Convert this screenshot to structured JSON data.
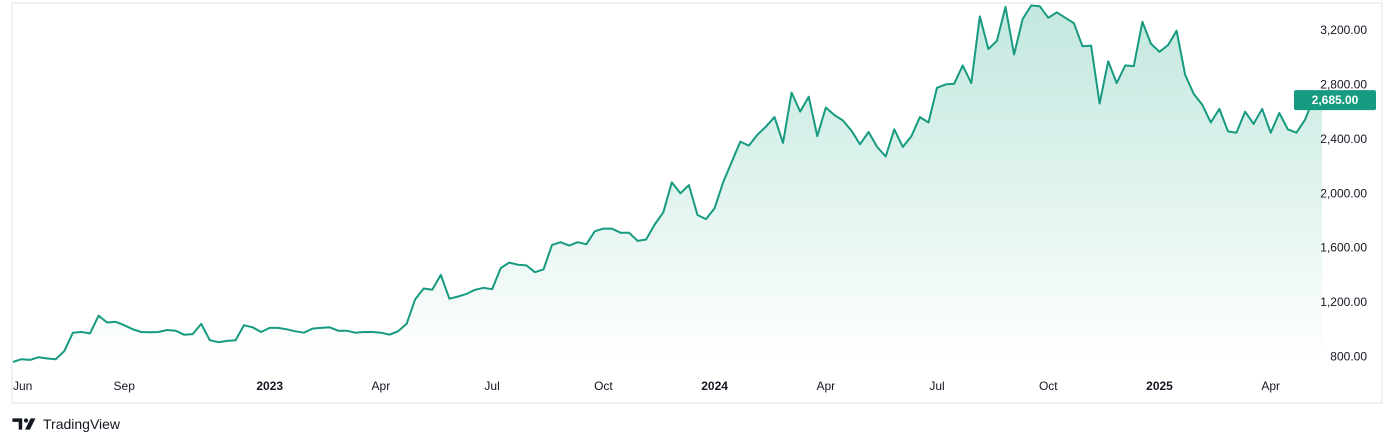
{
  "brand": {
    "logo_icon": "tradingview-logo-icon",
    "name": "TradingView"
  },
  "colors": {
    "line": "#169a80",
    "area_top": "#bfe6dd",
    "area_bottom": "#ffffff",
    "label_bg": "#169a80",
    "axis_text": "#131722",
    "border": "#e0e3eb"
  },
  "chart_data": {
    "type": "area",
    "grid": false,
    "ylim": [
      700,
      3400
    ],
    "y_ticks": [
      800,
      1200,
      1600,
      2000,
      2400,
      2800,
      3200
    ],
    "y_tick_labels": [
      "800.00",
      "1,200.00",
      "1,600.00",
      "2,000.00",
      "2,400.00",
      "2,800.00",
      "3,200.00"
    ],
    "x_tick_labels": [
      {
        "label": "Jun",
        "year": false,
        "t": 0
      },
      {
        "label": "Sep",
        "year": false,
        "t": 13
      },
      {
        "label": "2023",
        "year": true,
        "t": 30
      },
      {
        "label": "Apr",
        "year": false,
        "t": 43
      },
      {
        "label": "Jul",
        "year": false,
        "t": 56
      },
      {
        "label": "Oct",
        "year": false,
        "t": 69
      },
      {
        "label": "2024",
        "year": true,
        "t": 82
      },
      {
        "label": "Apr",
        "year": false,
        "t": 95
      },
      {
        "label": "Jul",
        "year": false,
        "t": 108
      },
      {
        "label": "Oct",
        "year": false,
        "t": 121
      },
      {
        "label": "2025",
        "year": true,
        "t": 134
      },
      {
        "label": "Apr",
        "year": false,
        "t": 147
      }
    ],
    "x_range": [
      0,
      148.2
    ],
    "last_value_label": "2,685.00",
    "last_value": 2685,
    "values": [
      760,
      780,
      775,
      795,
      785,
      780,
      840,
      975,
      980,
      970,
      1100,
      1050,
      1055,
      1030,
      1000,
      980,
      978,
      980,
      995,
      990,
      960,
      965,
      1040,
      920,
      905,
      915,
      920,
      1030,
      1015,
      980,
      1010,
      1010,
      1000,
      985,
      975,
      1005,
      1010,
      1015,
      990,
      990,
      975,
      980,
      980,
      975,
      960,
      985,
      1040,
      1220,
      1300,
      1290,
      1400,
      1225,
      1240,
      1260,
      1290,
      1305,
      1295,
      1450,
      1490,
      1475,
      1470,
      1420,
      1440,
      1620,
      1640,
      1615,
      1640,
      1625,
      1720,
      1740,
      1740,
      1710,
      1710,
      1650,
      1660,
      1770,
      1860,
      2080,
      2000,
      2060,
      1840,
      1810,
      1890,
      2080,
      2230,
      2380,
      2350,
      2430,
      2490,
      2560,
      2370,
      2740,
      2600,
      2710,
      2420,
      2630,
      2575,
      2535,
      2460,
      2360,
      2450,
      2340,
      2270,
      2470,
      2340,
      2420,
      2560,
      2520,
      2775,
      2800,
      2805,
      2940,
      2810,
      3300,
      3060,
      3120,
      3370,
      3020,
      3280,
      3380,
      3375,
      3290,
      3330,
      3290,
      3250,
      3080,
      3085,
      2660,
      2970,
      2810,
      2940,
      2935,
      3260,
      3100,
      3040,
      3090,
      3195,
      2870,
      2730,
      2650,
      2520,
      2620,
      2455,
      2445,
      2600,
      2510,
      2620,
      2445,
      2590,
      2470,
      2445,
      2540,
      2695,
      2685
    ]
  }
}
